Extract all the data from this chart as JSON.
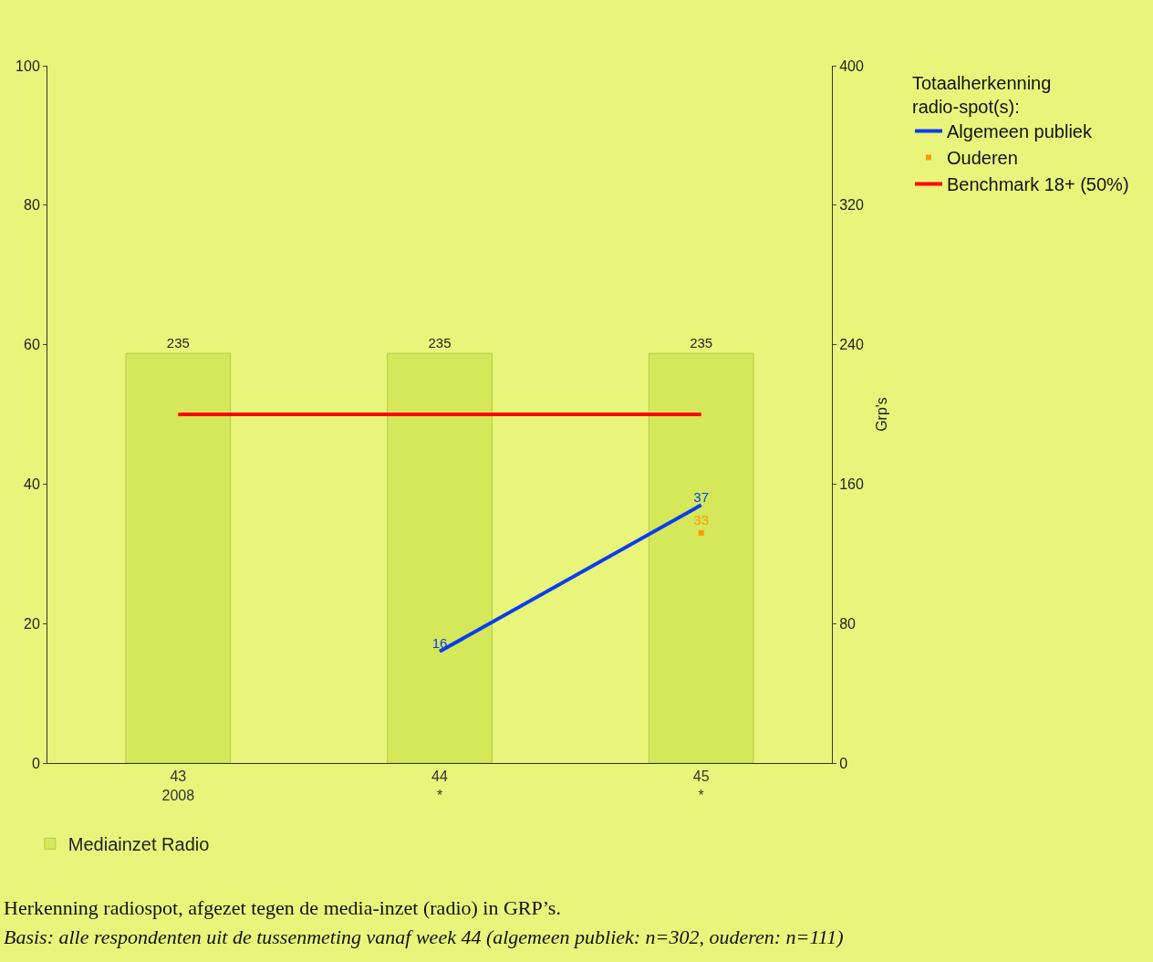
{
  "chart_data": {
    "type": "bar",
    "categories": [
      "43\n2008",
      "44\n*",
      "45\n*"
    ],
    "y2label": "Grp's",
    "legend_title": "Totaalherkenning\nradio-spot(s):",
    "ylim": [
      0,
      100
    ],
    "yticks": [
      0,
      20,
      40,
      60,
      80,
      100
    ],
    "y2lim": [
      0,
      400
    ],
    "y2ticks": [
      0,
      80,
      160,
      240,
      320,
      400
    ],
    "series": [
      {
        "name": "Mediainzet Radio",
        "axis": "y2",
        "color": "#d4e85a",
        "values": [
          235,
          235,
          235
        ],
        "value_labels": [
          "235",
          "235",
          "235"
        ]
      },
      {
        "name": "Algemeen publiek",
        "type": "line",
        "color": "#0a3cf0",
        "values": [
          null,
          16,
          37
        ],
        "value_labels": [
          null,
          "16",
          "37"
        ],
        "marker": "none"
      },
      {
        "name": "Ouderen",
        "type": "scatter",
        "color": "#ff9a00",
        "values": [
          null,
          null,
          33
        ],
        "value_labels": [
          null,
          null,
          "33"
        ],
        "marker": "square"
      },
      {
        "name": "Benchmark 18+ (50%)",
        "type": "line",
        "color": "#ff0000",
        "values": [
          50,
          50,
          50
        ],
        "marker": "none"
      }
    ],
    "grid": false,
    "legend": "right",
    "annotations": [
      "Herkenning radiospot, afgezet tegen de media-inzet (radio) in GRP’s.",
      "Basis: alle respondenten uit de tussenmeting vanaf week 44 (algemeen publiek: n=302, ouderen: n=111)"
    ]
  }
}
